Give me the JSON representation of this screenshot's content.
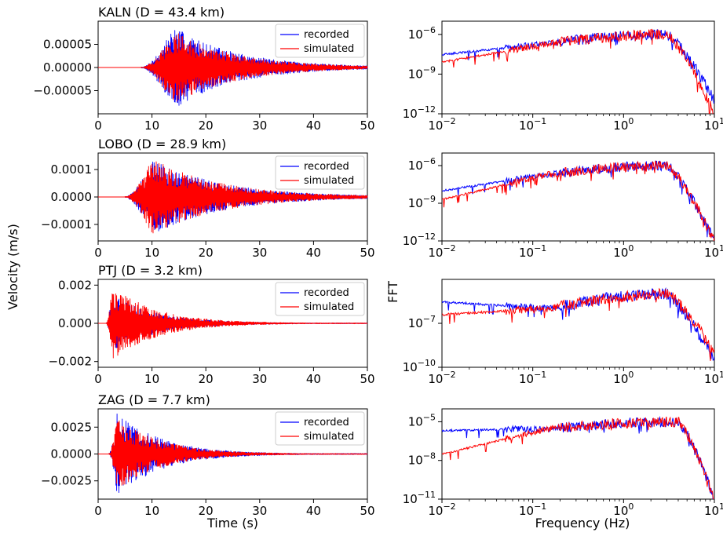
{
  "figure": {
    "ylabel_left": "Velocity (m/s)",
    "ylabel_right": "FFT",
    "xlabel_time": "Time (s)",
    "xlabel_freq": "Frequency (Hz)"
  },
  "colors": {
    "recorded": "#0000ff",
    "simulated": "#ff0000"
  },
  "chart_data": [
    {
      "type": "line",
      "title": "KALN (D = 43.4 km)",
      "xlabel": "",
      "ylabel": "",
      "xlim": [
        0,
        50
      ],
      "ylim": [
        -0.0001,
        0.0001
      ],
      "xticks": [
        0,
        10,
        20,
        30,
        40,
        50
      ],
      "xtick_labels": [
        "0",
        "10",
        "20",
        "30",
        "40",
        "50"
      ],
      "yticks": [
        5e-05,
        0,
        -5e-05
      ],
      "ytick_labels": [
        "0.00005",
        "0.00000",
        "−0.00005"
      ],
      "legend": {
        "placement": "top-right",
        "entries": [
          "recorded",
          "simulated"
        ]
      },
      "series": [
        {
          "name": "recorded",
          "onset": 8,
          "peak_time": 14,
          "peak_amplitude": 9e-05,
          "end": 50
        },
        {
          "name": "simulated",
          "onset": 8,
          "peak_time": 14,
          "peak_amplitude": 8e-05,
          "end": 50
        }
      ]
    },
    {
      "type": "line",
      "title": "",
      "xlabel": "",
      "ylabel": "",
      "xscale": "log",
      "yscale": "log",
      "xlim": [
        0.01,
        10
      ],
      "ylim": [
        1e-12,
        1e-05
      ],
      "yticks": [
        1e-06,
        1e-09,
        1e-12
      ],
      "ytick_labels": [
        "10^-6",
        "10^-9",
        "10^-12"
      ],
      "series": [
        {
          "name": "recorded",
          "low_level": 3e-08,
          "plateau": 2e-07,
          "peak": 1e-06,
          "corner_freq": 3,
          "high_freq_level": 1e-11
        },
        {
          "name": "simulated",
          "low_level": 8e-09,
          "plateau": 2e-07,
          "peak": 1e-06,
          "corner_freq": 3,
          "high_freq_level": 1e-12
        }
      ]
    },
    {
      "type": "line",
      "title": "LOBO (D = 28.9 km)",
      "xlabel": "",
      "ylabel": "",
      "xlim": [
        0,
        50
      ],
      "ylim": [
        -0.00016,
        0.00016
      ],
      "xticks": [
        0,
        10,
        20,
        30,
        40,
        50
      ],
      "xtick_labels": [
        "0",
        "10",
        "20",
        "30",
        "40",
        "50"
      ],
      "yticks": [
        0.0001,
        0,
        -0.0001
      ],
      "ytick_labels": [
        "0.0001",
        "0.0000",
        "−0.0001"
      ],
      "legend": {
        "placement": "top-right",
        "entries": [
          "recorded",
          "simulated"
        ]
      },
      "series": [
        {
          "name": "recorded",
          "onset": 5,
          "peak_time": 10,
          "peak_amplitude": 0.00014,
          "end": 50
        },
        {
          "name": "simulated",
          "onset": 5,
          "peak_time": 10,
          "peak_amplitude": 0.00014,
          "end": 50
        }
      ]
    },
    {
      "type": "line",
      "title": "",
      "xlabel": "",
      "ylabel": "",
      "xscale": "log",
      "yscale": "log",
      "xlim": [
        0.01,
        10
      ],
      "ylim": [
        1e-12,
        1e-05
      ],
      "yticks": [
        1e-06,
        1e-09,
        1e-12
      ],
      "ytick_labels": [
        "10^-6",
        "10^-9",
        "10^-12"
      ],
      "series": [
        {
          "name": "recorded",
          "low_level": 1e-08,
          "plateau": 2e-07,
          "peak": 1e-06,
          "corner_freq": 3,
          "high_freq_level": 1e-12
        },
        {
          "name": "simulated",
          "low_level": 2e-09,
          "plateau": 2e-07,
          "peak": 1e-06,
          "corner_freq": 3,
          "high_freq_level": 1e-12
        }
      ]
    },
    {
      "type": "line",
      "title": "PTJ (D = 3.2 km)",
      "xlabel": "",
      "ylabel": "",
      "xlim": [
        0,
        50
      ],
      "ylim": [
        -0.0023,
        0.0023
      ],
      "xticks": [
        0,
        10,
        20,
        30,
        40,
        50
      ],
      "xtick_labels": [
        "0",
        "10",
        "20",
        "30",
        "40",
        "50"
      ],
      "yticks": [
        0.002,
        0,
        -0.002
      ],
      "ytick_labels": [
        "0.002",
        "0.000",
        "−0.002"
      ],
      "legend": {
        "placement": "top-right",
        "entries": [
          "recorded",
          "simulated"
        ]
      },
      "series": [
        {
          "name": "recorded",
          "onset": 1.5,
          "peak_time": 2.5,
          "peak_amplitude": 0.0015,
          "end": 50
        },
        {
          "name": "simulated",
          "onset": 1.5,
          "peak_time": 2.5,
          "peak_amplitude": 0.002,
          "end": 50
        }
      ]
    },
    {
      "type": "line",
      "title": "",
      "xlabel": "",
      "ylabel": "",
      "xscale": "log",
      "yscale": "log",
      "xlim": [
        0.01,
        10
      ],
      "ylim": [
        1e-10,
        0.0001
      ],
      "yticks": [
        1e-07,
        1e-10
      ],
      "ytick_labels": [
        "10^-7",
        "10^-10"
      ],
      "series": [
        {
          "name": "recorded",
          "low_level": 3e-06,
          "plateau": 1e-06,
          "peak": 1e-05,
          "corner_freq": 3,
          "high_freq_level": 3e-10
        },
        {
          "name": "simulated",
          "low_level": 4e-07,
          "plateau": 1e-06,
          "peak": 1e-05,
          "corner_freq": 3,
          "high_freq_level": 1e-09
        }
      ]
    },
    {
      "type": "line",
      "title": "ZAG (D = 7.7 km)",
      "xlabel": "Time (s)",
      "ylabel": "",
      "xlim": [
        0,
        50
      ],
      "ylim": [
        -0.0042,
        0.0042
      ],
      "xticks": [
        0,
        10,
        20,
        30,
        40,
        50
      ],
      "xtick_labels": [
        "0",
        "10",
        "20",
        "30",
        "40",
        "50"
      ],
      "yticks": [
        0.0025,
        0,
        -0.0025
      ],
      "ytick_labels": [
        "0.0025",
        "0.0000",
        "−0.0025"
      ],
      "legend": {
        "placement": "top-right",
        "entries": [
          "recorded",
          "simulated"
        ]
      },
      "series": [
        {
          "name": "recorded",
          "onset": 2,
          "peak_time": 3.5,
          "peak_amplitude": 0.004,
          "end": 50
        },
        {
          "name": "simulated",
          "onset": 2,
          "peak_time": 3.5,
          "peak_amplitude": 0.0035,
          "end": 50
        }
      ]
    },
    {
      "type": "line",
      "title": "",
      "xlabel": "Frequency (Hz)",
      "ylabel": "",
      "xscale": "log",
      "yscale": "log",
      "xlim": [
        0.01,
        10
      ],
      "ylim": [
        1e-11,
        0.0001
      ],
      "yticks": [
        1e-05,
        1e-08,
        1e-11
      ],
      "ytick_labels": [
        "10^-5",
        "10^-8",
        "10^-11"
      ],
      "series": [
        {
          "name": "recorded",
          "low_level": 2e-06,
          "plateau": 3e-06,
          "peak": 1e-05,
          "corner_freq": 4,
          "high_freq_level": 1e-11
        },
        {
          "name": "simulated",
          "low_level": 3e-08,
          "plateau": 3e-06,
          "peak": 1e-05,
          "corner_freq": 4,
          "high_freq_level": 1e-11
        }
      ]
    }
  ]
}
